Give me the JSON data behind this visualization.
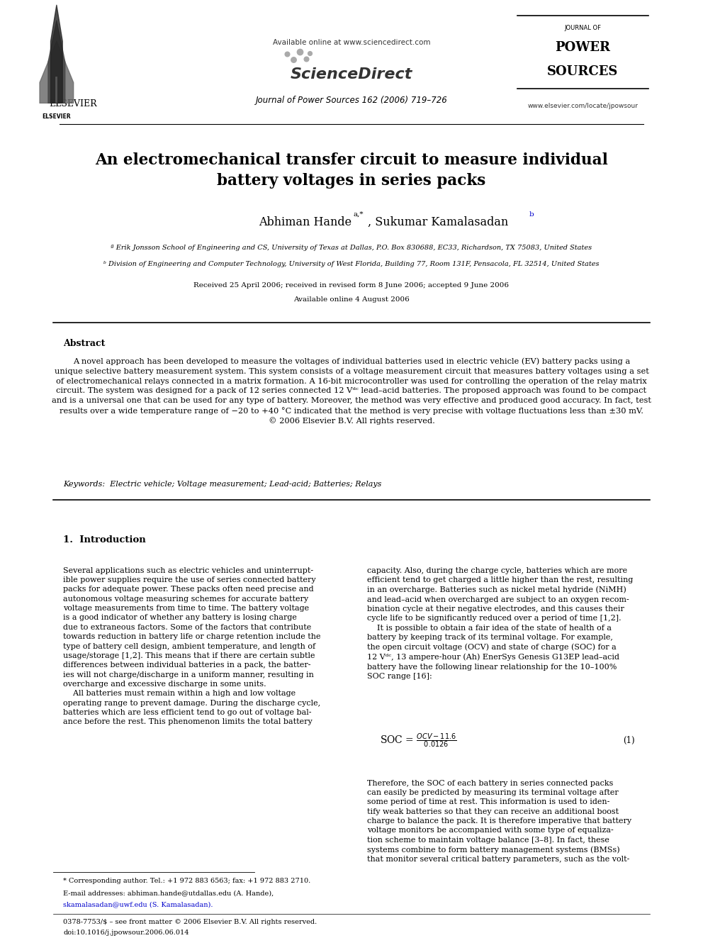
{
  "bg_color": "#ffffff",
  "page_width": 9.92,
  "page_height": 13.23,
  "header": {
    "available_online": "Available online at www.sciencedirect.com",
    "journal_name": "Journal of Power Sources 162 (2006) 719–726",
    "website": "www.elsevier.com/locate/jpowsour"
  },
  "title": "An electromechanical transfer circuit to measure individual\nbattery voltages in series packs",
  "authors": "Abhiman Hande",
  "authors2": ", Sukumar Kamalasadan",
  "author_super_a": "a,*",
  "author_super_b": "b",
  "affil_a": "ª Erik Jonsson School of Engineering and CS, University of Texas at Dallas, P.O. Box 830688, EC33, Richardson, TX 75083, United States",
  "affil_b": "ᵇ Division of Engineering and Computer Technology, University of West Florida, Building 77, Room 131F, Pensacola, FL 32514, United States",
  "received": "Received 25 April 2006; received in revised form 8 June 2006; accepted 9 June 2006",
  "available": "Available online 4 August 2006",
  "abstract_title": "Abstract",
  "abstract_text": "A novel approach has been developed to measure the voltages of individual batteries used in electric vehicle (EV) battery packs using a\nunique selective battery measurement system. This system consists of a voltage measurement circuit that measures battery voltages using a set\nof electromechanical relays connected in a matrix formation. A 16-bit microcontroller was used for controlling the operation of the relay matrix\ncircuit. The system was designed for a pack of 12 series connected 12 Vᵈᶜ lead–acid batteries. The proposed approach was found to be compact\nand is a universal one that can be used for any type of battery. Moreover, the method was very effective and produced good accuracy. In fact, test\nresults over a wide temperature range of −20 to +40 °C indicated that the method is very precise with voltage fluctuations less than ±30 mV.\n© 2006 Elsevier B.V. All rights reserved.",
  "keywords": "Keywords:  Electric vehicle; Voltage measurement; Lead-acid; Batteries; Relays",
  "section1_title": "1.  Introduction",
  "intro_col1": "Several applications such as electric vehicles and uninterrupt-\nible power supplies require the use of series connected battery\npacks for adequate power. These packs often need precise and\nautonomous voltage measuring schemes for accurate battery\nvoltage measurements from time to time. The battery voltage\nis a good indicator of whether any battery is losing charge\ndue to extraneous factors. Some of the factors that contribute\ntowards reduction in battery life or charge retention include the\ntype of battery cell design, ambient temperature, and length of\nusage/storage [1,2]. This means that if there are certain subtle\ndifferences between individual batteries in a pack, the batter-\nies will not charge/discharge in a uniform manner, resulting in\novercharge and excessive discharge in some units.\n    All batteries must remain within a high and low voltage\noperating range to prevent damage. During the discharge cycle,\nbatteries which are less efficient tend to go out of voltage bal-\nance before the rest. This phenomenon limits the total battery",
  "intro_col2": "capacity. Also, during the charge cycle, batteries which are more\nefficient tend to get charged a little higher than the rest, resulting\nin an overcharge. Batteries such as nickel metal hydride (NiMH)\nand lead–acid when overcharged are subject to an oxygen recom-\nbination cycle at their negative electrodes, and this causes their\ncycle life to be significantly reduced over a period of time [1,2].\n    It is possible to obtain a fair idea of the state of health of a\nbattery by keeping track of its terminal voltage. For example,\nthe open circuit voltage (OCV) and state of charge (SOC) for a\n12 Vᵈᶜ, 13 ampere-hour (Ah) EnerSys Genesis G13EP lead–acid\nbattery have the following linear relationship for the 10–100%\nSOC range [16]:",
  "equation": "SOC = \\frac{OCV - 11.6}{0.0126}",
  "eq_number": "(1)",
  "intro_col2b": "Therefore, the SOC of each battery in series connected packs\ncan easily be predicted by measuring its terminal voltage after\nsome period of time at rest. This information is used to iden-\ntify weak batteries so that they can receive an additional boost\ncharge to balance the pack. It is therefore imperative that battery\nvoltage monitors be accompanied with some type of equaliza-\ntion scheme to maintain voltage balance [3–8]. In fact, these\nsystems combine to form battery management systems (BMSs)\nthat monitor several critical battery parameters, such as the volt-",
  "footnote1": "* Corresponding author. Tel.: +1 972 883 6563; fax: +1 972 883 2710.",
  "footnote2": "E-mail addresses: abhiman.hande@utdallas.edu (A. Hande),",
  "footnote3": "skamalasadan@uwf.edu (S. Kamalasadan).",
  "footnote4": "0378-7753/$ – see front matter © 2006 Elsevier B.V. All rights reserved.",
  "footnote5": "doi:10.1016/j.jpowsour.2006.06.014",
  "text_color": "#000000",
  "link_color": "#0000cc",
  "title_color": "#000000"
}
